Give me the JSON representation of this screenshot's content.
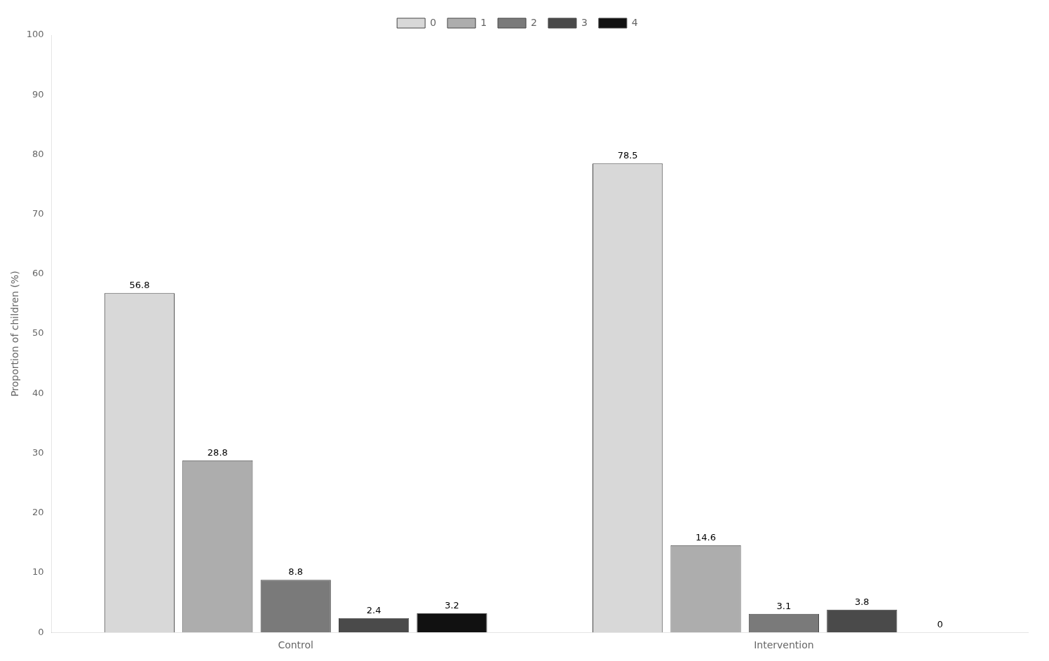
{
  "chart_data": {
    "type": "bar",
    "ylabel": "Proportion of children (%)",
    "categories": [
      "Control",
      "Intervention"
    ],
    "series": [
      {
        "name": "0",
        "color": "#d8d8d8",
        "values": [
          56.8,
          78.5
        ]
      },
      {
        "name": "1",
        "color": "#adadad",
        "values": [
          28.8,
          14.6
        ]
      },
      {
        "name": "2",
        "color": "#7a7a7a",
        "values": [
          8.8,
          3.1
        ]
      },
      {
        "name": "3",
        "color": "#4a4a4a",
        "values": [
          2.4,
          3.8
        ]
      },
      {
        "name": "4",
        "color": "#111111",
        "values": [
          3.2,
          0
        ]
      }
    ],
    "ylim": [
      0,
      100
    ],
    "yticks": [
      0,
      10,
      20,
      30,
      40,
      50,
      60,
      70,
      80,
      90,
      100
    ],
    "grid": false,
    "legend": "top",
    "data_labels": true
  }
}
